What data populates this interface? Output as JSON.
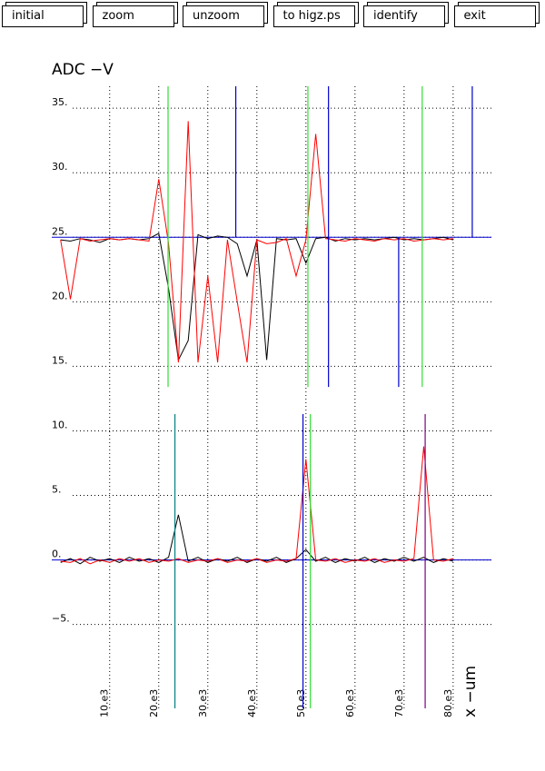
{
  "buttons": [
    "initial",
    "zoom",
    "unzoom",
    "to higz.ps",
    "identify",
    "exit"
  ],
  "chart_data": {
    "type": "line",
    "title": "ADC  −V",
    "x_label": "x  −um",
    "xlim": [
      -1800,
      87800
    ],
    "ylim": [
      -11.5,
      36.7
    ],
    "xticks": [
      {
        "value": 10000,
        "label": "10.e3"
      },
      {
        "value": 20000,
        "label": "20.e3"
      },
      {
        "value": 30000,
        "label": "30.e3"
      },
      {
        "value": 40000,
        "label": "40.e3"
      },
      {
        "value": 50000,
        "label": "50.e3"
      },
      {
        "value": 60000,
        "label": "60.e3"
      },
      {
        "value": 70000,
        "label": "70.e3"
      },
      {
        "value": 80000,
        "label": "80.e3"
      }
    ],
    "yticks": [
      {
        "value": 35,
        "label": "35."
      },
      {
        "value": 30,
        "label": "30."
      },
      {
        "value": 25,
        "label": "25."
      },
      {
        "value": 20,
        "label": "20."
      },
      {
        "value": 15,
        "label": "15."
      },
      {
        "value": 10,
        "label": "10."
      },
      {
        "value": 5,
        "label": "5."
      },
      {
        "value": 0,
        "label": "0."
      },
      {
        "value": -5,
        "label": "−5."
      }
    ],
    "grid": true,
    "hlines": [
      {
        "y": 25,
        "color": "#0000cc"
      },
      {
        "y": 0,
        "color": "#0000cc"
      }
    ],
    "x": [
      0,
      2000,
      4000,
      6000,
      8000,
      10000,
      12000,
      14000,
      16000,
      18000,
      20000,
      22000,
      24000,
      26000,
      28000,
      30000,
      32000,
      34000,
      36000,
      38000,
      40000,
      42000,
      44000,
      46000,
      48000,
      50000,
      52000,
      54000,
      56000,
      58000,
      60000,
      62000,
      64000,
      66000,
      68000,
      70000,
      72000,
      74000,
      76000,
      78000,
      80000
    ],
    "series": [
      {
        "color": "#000000",
        "values": [
          24.8,
          24.7,
          24.9,
          24.8,
          24.6,
          24.9,
          24.8,
          24.9,
          24.8,
          24.9,
          25.3,
          21,
          15.5,
          17,
          25.2,
          24.9,
          25.1,
          25,
          24.5,
          22,
          24.8,
          15.5,
          24.9,
          24.8,
          24.9,
          23,
          24.9,
          25,
          24.7,
          24.9,
          24.8,
          24.9,
          24.8,
          24.9,
          25,
          24.8,
          24.9,
          24.8,
          24.9,
          25,
          24.8
        ]
      },
      {
        "color": "#ff0000",
        "values": [
          24.8,
          20.2,
          24.9,
          24.7,
          24.8,
          24.9,
          24.8,
          24.9,
          24.8,
          24.7,
          29.5,
          24.5,
          15.3,
          34,
          15.3,
          22,
          15.3,
          24.8,
          20,
          15.3,
          24.8,
          24.5,
          24.6,
          24.9,
          22,
          24.8,
          33,
          24.9,
          24.8,
          24.7,
          24.9,
          24.8,
          24.7,
          24.9,
          24.8,
          24.9,
          24.7,
          24.8,
          24.9,
          24.8,
          24.9
        ]
      },
      {
        "color": "#000000",
        "values": [
          -0.2,
          0.1,
          -0.3,
          0.2,
          -0.1,
          0.1,
          -0.2,
          0.2,
          -0.1,
          0.1,
          -0.2,
          0.2,
          3.5,
          -0.1,
          0.2,
          -0.2,
          0.1,
          -0.1,
          0.2,
          -0.2,
          0.1,
          -0.1,
          0.2,
          -0.2,
          0.1,
          0.8,
          -0.1,
          0.2,
          -0.2,
          0.1,
          -0.1,
          0.2,
          -0.2,
          0.1,
          -0.1,
          0.2,
          -0.1,
          0.2,
          -0.2,
          0.1,
          -0.1
        ]
      },
      {
        "color": "#ff0000",
        "values": [
          -0.1,
          -0.2,
          0.1,
          -0.3,
          0,
          -0.2,
          0.1,
          -0.1,
          0.1,
          -0.2,
          0,
          -0.1,
          0.1,
          -0.2,
          0,
          -0.1,
          0.1,
          -0.2,
          0,
          -0.1,
          0.1,
          -0.2,
          0,
          -0.1,
          0.1,
          7.8,
          0,
          -0.1,
          0.1,
          -0.2,
          0,
          -0.1,
          0.1,
          -0.2,
          0,
          -0.1,
          0.1,
          8.8,
          0,
          -0.1,
          0.1
        ]
      }
    ],
    "vlines": [
      {
        "x": 21900,
        "from": 13.4,
        "to": 36.7,
        "color": "#33dd33"
      },
      {
        "x": 50400,
        "from": 13.4,
        "to": 36.7,
        "color": "#33dd33"
      },
      {
        "x": 73700,
        "from": 13.4,
        "to": 36.7,
        "color": "#33dd33"
      },
      {
        "x": 35700,
        "from": 25,
        "to": 36.7,
        "color": "#0000cc"
      },
      {
        "x": 54600,
        "from": 13.4,
        "to": 36.7,
        "color": "#0000cc"
      },
      {
        "x": 83900,
        "from": 25,
        "to": 36.7,
        "color": "#0000cc"
      },
      {
        "x": 68900,
        "from": 13.4,
        "to": 25,
        "color": "#0000cc"
      },
      {
        "x": 23300,
        "from": -11.5,
        "to": 11.3,
        "color": "#008080"
      },
      {
        "x": 49400,
        "from": -11.5,
        "to": 11.3,
        "color": "#0000cc"
      },
      {
        "x": 50900,
        "from": -11.5,
        "to": 11.3,
        "color": "#33dd33"
      },
      {
        "x": 74300,
        "from": -11.5,
        "to": 11.3,
        "color": "#800080"
      }
    ]
  }
}
